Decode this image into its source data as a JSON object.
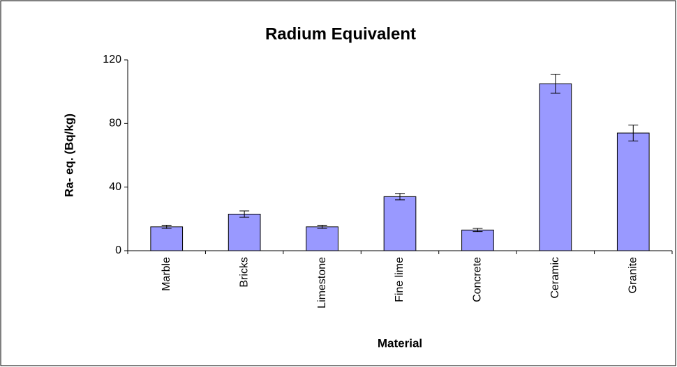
{
  "chart_data": {
    "type": "bar",
    "title": "Radium Equivalent",
    "x_label": "Material",
    "y_label": "Ra- eq. (Bq/kg)",
    "categories": [
      "Marble",
      "Bricks",
      "Limestone",
      "Fine lime",
      "Concrete",
      "Ceramic",
      "Granite"
    ],
    "values": [
      15,
      23,
      15,
      34,
      13,
      105,
      74
    ],
    "errors": [
      1,
      2,
      1,
      2,
      1,
      6,
      5
    ],
    "color": "#9999ff",
    "ylim": [
      0,
      120
    ],
    "yticks": [
      0,
      40,
      80,
      120
    ],
    "grid": false
  }
}
